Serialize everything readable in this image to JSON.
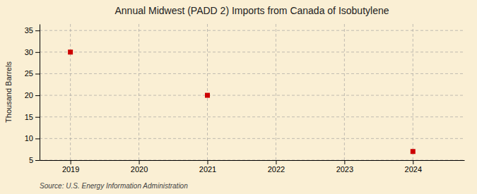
{
  "chart_data": {
    "type": "scatter",
    "title": "Annual Midwest (PADD 2) Imports from Canada of Isobutylene",
    "y_label": "Thousand Barrels",
    "annotations": [
      "Source: U.S. Energy Information Administration"
    ],
    "x": [
      2019,
      2021,
      2024
    ],
    "values": [
      30,
      20,
      7
    ],
    "color": "#cc0000",
    "marker": "square",
    "xlim": [
      2018.55,
      2024.75
    ],
    "ylim": [
      5,
      36.5
    ],
    "xticks": [
      2019,
      2020,
      2021,
      2022,
      2023,
      2024
    ],
    "yticks": [
      5,
      10,
      15,
      20,
      25,
      30,
      35
    ],
    "grid": true
  }
}
